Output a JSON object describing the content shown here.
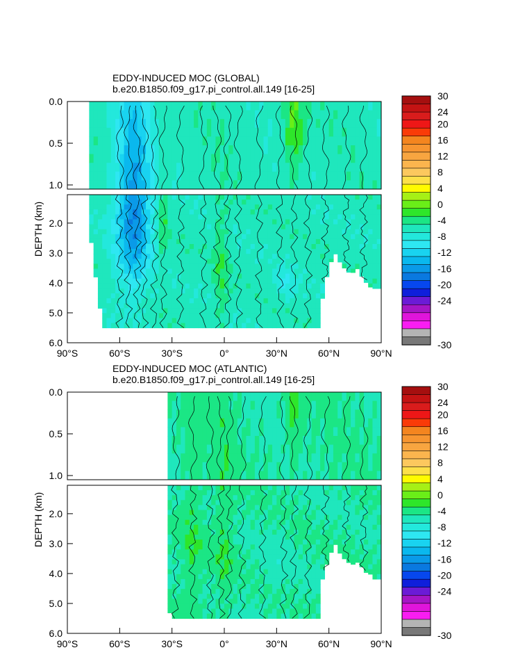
{
  "chart_data": [
    {
      "type": "heatmap",
      "title": "EDDY-INDUCED MOC (GLOBAL)",
      "subtitle": "b.e20.B1850.f09_g17.pi_control.all.149 [16-25]",
      "xlabel": "",
      "ylabel": "DEPTH (km)",
      "xlim": [
        -90,
        90
      ],
      "ylim": [
        6.0,
        0.0
      ],
      "x_ticks": [
        "90°S",
        "60°S",
        "30°S",
        "0°",
        "30°N",
        "60°N",
        "90°N"
      ],
      "y_ticks_upper": [
        "0.0",
        "0.5",
        "1.0"
      ],
      "y_ticks_lower": [
        "2.0",
        "3.0",
        "4.0",
        "5.0",
        "6.0"
      ],
      "upper_panel_depth_km": [
        0,
        1.05
      ],
      "lower_panel_depth_km": [
        1.05,
        6.0
      ],
      "ocean_extent": {
        "south_lat": -78,
        "north_lat": 90,
        "bottom_depth_km": 5.5,
        "coast_profile": [
          [
            -78,
            0.0
          ],
          [
            -77,
            1.0
          ],
          [
            -76,
            3.2
          ],
          [
            -73,
            4.0
          ],
          [
            -70,
            5.5
          ],
          [
            54,
            5.5
          ],
          [
            57,
            4.2
          ],
          [
            60,
            3.5
          ],
          [
            63,
            3.0
          ],
          [
            65,
            3.2
          ],
          [
            70,
            3.6
          ],
          [
            73,
            3.7
          ],
          [
            76,
            3.5
          ],
          [
            80,
            3.9
          ],
          [
            83,
            4.1
          ],
          [
            85,
            4.2
          ],
          [
            88,
            4.2
          ],
          [
            90,
            4.2
          ]
        ]
      },
      "background_value_sv": -2,
      "features": [
        {
          "name": "southern-ocean-negative-cell",
          "lat_center": -52,
          "lat_halfwidth": 10,
          "depth_center_km": 1.8,
          "depth_halfwidth_km": 2.2,
          "min_sv": -13
        },
        {
          "name": "southern-positive-band",
          "lat_center": -35,
          "lat_halfwidth": 3,
          "depth_center_km": 2.0,
          "depth_halfwidth_km": 1.6,
          "max_sv": 1
        },
        {
          "name": "equatorial-positive-band",
          "lat_center": -2,
          "lat_halfwidth": 4,
          "depth_center_km": 3.5,
          "depth_halfwidth_km": 2.2,
          "max_sv": 1
        },
        {
          "name": "northern-surface-positive",
          "lat_center": 40,
          "lat_halfwidth": 6,
          "depth_center_km": 0.25,
          "depth_halfwidth_km": 0.6,
          "max_sv": 3
        },
        {
          "name": "deep-negative-north",
          "lat_center": 35,
          "lat_halfwidth": 6,
          "depth_center_km": 4.0,
          "depth_halfwidth_km": 0.5,
          "min_sv": -5
        }
      ]
    },
    {
      "type": "heatmap",
      "title": "EDDY-INDUCED MOC (ATLANTIC)",
      "subtitle": "b.e20.B1850.f09_g17.pi_control.all.149 [16-25]",
      "xlabel": "",
      "ylabel": "DEPTH (km)",
      "xlim": [
        -90,
        90
      ],
      "ylim": [
        6.0,
        0.0
      ],
      "x_ticks": [
        "90°S",
        "60°S",
        "30°S",
        "0°",
        "30°N",
        "60°N",
        "90°N"
      ],
      "y_ticks_upper": [
        "0.0",
        "0.5",
        "1.0"
      ],
      "y_ticks_lower": [
        "2.0",
        "3.0",
        "4.0",
        "5.0",
        "6.0"
      ],
      "upper_panel_depth_km": [
        0,
        1.05
      ],
      "lower_panel_depth_km": [
        1.05,
        6.0
      ],
      "ocean_extent": {
        "south_lat": -33,
        "north_lat": 90,
        "bottom_depth_km": 5.5,
        "coast_profile": [
          [
            -33,
            0.0
          ],
          [
            -33,
            2.5
          ],
          [
            -32,
            4.5
          ],
          [
            -32,
            5.2
          ],
          [
            -30,
            5.5
          ],
          [
            54,
            5.5
          ],
          [
            56,
            4.3
          ],
          [
            60,
            3.5
          ],
          [
            63,
            3.0
          ],
          [
            66,
            3.3
          ],
          [
            70,
            3.6
          ],
          [
            74,
            3.7
          ],
          [
            77,
            3.6
          ],
          [
            80,
            3.9
          ],
          [
            84,
            4.1
          ],
          [
            86,
            4.2
          ],
          [
            90,
            4.2
          ]
        ]
      },
      "background_value_sv": -1,
      "features": [
        {
          "name": "equatorial-positive-band",
          "lat_center": 0,
          "lat_halfwidth": 5,
          "depth_center_km": 2.8,
          "depth_halfwidth_km": 3.0,
          "max_sv": 1
        },
        {
          "name": "northern-surface-positive",
          "lat_center": 40,
          "lat_halfwidth": 4,
          "depth_center_km": 0.3,
          "depth_halfwidth_km": 0.5,
          "max_sv": 2
        },
        {
          "name": "southern-positive-band",
          "lat_center": -18,
          "lat_halfwidth": 6,
          "depth_center_km": 3.0,
          "depth_halfwidth_km": 2.5,
          "max_sv": 1
        },
        {
          "name": "deep-negative-north",
          "lat_center": 30,
          "lat_halfwidth": 8,
          "depth_center_km": 3.8,
          "depth_halfwidth_km": 1.0,
          "min_sv": -2
        }
      ]
    }
  ],
  "colorbar": {
    "labels": [
      "30",
      "24",
      "20",
      "16",
      "12",
      "8",
      "4",
      "0",
      "-4",
      "-8",
      "-12",
      "-16",
      "-20",
      "-24",
      "-30"
    ],
    "colors": [
      "#a50f0f",
      "#c41313",
      "#d91c1c",
      "#ee1717",
      "#fa3b08",
      "#f4851f",
      "#f79530",
      "#f8a540",
      "#fbb54e",
      "#fcc85e",
      "#fde049",
      "#fffb00",
      "#a6f016",
      "#6aee18",
      "#2ee62a",
      "#1be685",
      "#1fe7bd",
      "#23e8dc",
      "#2ee7f2",
      "#19d3f0",
      "#0ab8ee",
      "#0a9ae8",
      "#0a79e0",
      "#0747ee",
      "#0f1fdb",
      "#6b1bd6",
      "#a616c6",
      "#e015db",
      "#f91df2",
      "#b4b4b4",
      "#787878"
    ]
  },
  "line_color": "#000000"
}
